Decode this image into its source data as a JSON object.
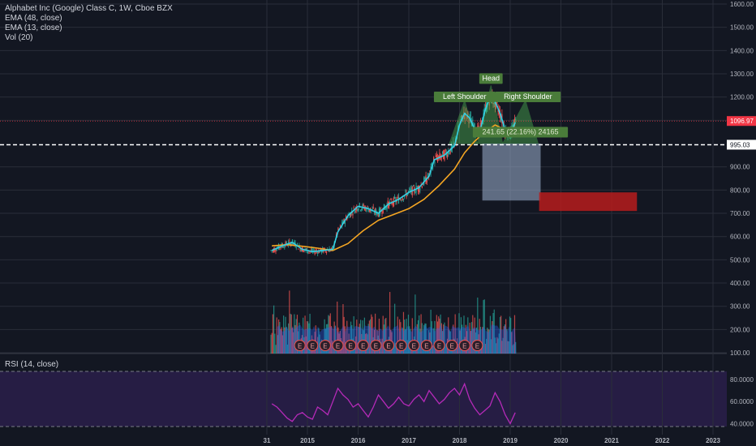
{
  "header": {
    "symbol": "Alphabet Inc (Google) Class C, 1W, Cboe BZX",
    "ema1": "EMA (48, close)",
    "ema2": "EMA (13, close)",
    "vol": "Vol (20)"
  },
  "rsi_label": "RSI (14, close)",
  "colors": {
    "background": "#131722",
    "grid": "#2a2e39",
    "ema13": "#33d1e6",
    "ema48": "#f5a623",
    "up": "#26a69a",
    "down": "#ef5350",
    "pattern_fill": "#4caf50",
    "target_box": "#9fb3d1",
    "stop_box": "#b71c1c",
    "rsi_line": "#b52ab8",
    "rsi_band": "#2a1e4a",
    "current_price": "#f23645"
  },
  "chart_data": [
    {
      "type": "line",
      "title": "Alphabet Inc (Google) Class C, 1W, Cboe BZX",
      "y_ticks": [
        "1600.00",
        "1500.00",
        "1400.00",
        "1300.00",
        "1200.00",
        "1100.00",
        "900.00",
        "800.00",
        "700.00",
        "600.00",
        "500.00",
        "400.00",
        "300.00",
        "200.00",
        "100.00"
      ],
      "x_ticks": [
        "31",
        "2015",
        "2016",
        "2017",
        "2018",
        "2019",
        "2020",
        "2021",
        "2022",
        "2023"
      ],
      "ylim": [
        100,
        1600
      ],
      "series": [
        {
          "name": "EMA (13, close)",
          "x": [
            2014.3,
            2014.5,
            2014.7,
            2014.9,
            2015.1,
            2015.3,
            2015.5,
            2015.6,
            2015.8,
            2016.0,
            2016.2,
            2016.4,
            2016.6,
            2016.8,
            2017.0,
            2017.2,
            2017.4,
            2017.5,
            2017.7,
            2017.9,
            2018.0,
            2018.1,
            2018.2,
            2018.3,
            2018.4,
            2018.5,
            2018.6,
            2018.7,
            2018.8,
            2018.9,
            2019.0,
            2019.1
          ],
          "values": [
            540,
            560,
            575,
            545,
            535,
            540,
            545,
            620,
            690,
            730,
            720,
            700,
            740,
            760,
            790,
            810,
            860,
            930,
            950,
            990,
            1080,
            1130,
            1110,
            1060,
            1050,
            1140,
            1200,
            1180,
            1130,
            1060,
            1040,
            1090
          ]
        },
        {
          "name": "EMA (48, close)",
          "x": [
            2014.3,
            2014.6,
            2014.9,
            2015.2,
            2015.5,
            2015.8,
            2016.1,
            2016.4,
            2016.7,
            2017.0,
            2017.3,
            2017.6,
            2017.9,
            2018.1,
            2018.3,
            2018.5,
            2018.7,
            2018.9,
            2019.1
          ],
          "values": [
            560,
            565,
            558,
            550,
            540,
            570,
            625,
            670,
            695,
            720,
            760,
            820,
            890,
            960,
            1010,
            1050,
            1080,
            1060,
            1050
          ]
        }
      ],
      "annotations": {
        "left_shoulder": "Left Shoulder",
        "head": "Head",
        "right_shoulder": "Right Shoulder",
        "measure": "241.65 (22.16%) 24165",
        "current_price": "1096.97",
        "neckline_price": "995.03"
      }
    },
    {
      "type": "bar",
      "title": "Vol (20)"
    },
    {
      "type": "line",
      "title": "RSI (14, close)",
      "y_ticks": [
        "80.0000",
        "60.0000",
        "40.0000"
      ],
      "ylim": [
        30,
        80
      ],
      "x": [
        2014.3,
        2014.4,
        2014.5,
        2014.6,
        2014.7,
        2014.8,
        2014.9,
        2015.0,
        2015.1,
        2015.2,
        2015.3,
        2015.4,
        2015.5,
        2015.6,
        2015.7,
        2015.8,
        2015.9,
        2016.0,
        2016.1,
        2016.2,
        2016.3,
        2016.4,
        2016.5,
        2016.6,
        2016.7,
        2016.8,
        2016.9,
        2017.0,
        2017.1,
        2017.2,
        2017.3,
        2017.4,
        2017.5,
        2017.6,
        2017.7,
        2017.8,
        2017.9,
        2018.0,
        2018.1,
        2018.2,
        2018.3,
        2018.4,
        2018.5,
        2018.6,
        2018.7,
        2018.8,
        2018.9,
        2019.0,
        2019.1
      ],
      "values": [
        58,
        55,
        50,
        45,
        42,
        48,
        50,
        46,
        44,
        55,
        52,
        48,
        60,
        72,
        66,
        62,
        55,
        58,
        52,
        46,
        55,
        66,
        60,
        54,
        58,
        64,
        58,
        56,
        62,
        66,
        60,
        70,
        64,
        58,
        62,
        68,
        72,
        66,
        76,
        62,
        54,
        48,
        52,
        56,
        68,
        60,
        48,
        40,
        50
      ]
    }
  ]
}
